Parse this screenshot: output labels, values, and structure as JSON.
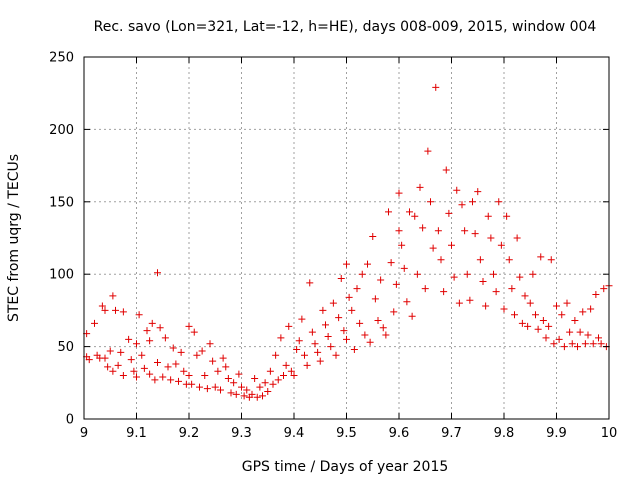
{
  "chart_data": {
    "type": "scatter",
    "title": "Rec. savo (Lon=321, Lat=-12, h=HE), days 008-009, 2015, window 004",
    "xlabel": "GPS time / Days of year 2015",
    "ylabel": "STEC from uqrg / TECUs",
    "xlim": [
      9,
      10
    ],
    "ylim": [
      0,
      250
    ],
    "xticks": [
      9,
      9.1,
      9.2,
      9.3,
      9.4,
      9.5,
      9.6,
      9.7,
      9.8,
      9.9,
      10
    ],
    "xtick_labels": [
      "9",
      "9.1",
      "9.2",
      "9.3",
      "9.4",
      "9.5",
      "9.6",
      "9.7",
      "9.8",
      "9.9",
      "10"
    ],
    "yticks": [
      0,
      50,
      100,
      150,
      200,
      250
    ],
    "ytick_labels": [
      "0",
      "50",
      "100",
      "150",
      "200",
      "250"
    ],
    "grid": true,
    "marker": "+",
    "colors": {
      "marker": "#e00000",
      "grid": "#a0a0a0",
      "axes": "#000000"
    },
    "series": [
      {
        "name": "STEC",
        "points": [
          [
            9.005,
            59
          ],
          [
            9.005,
            43
          ],
          [
            9.01,
            41
          ],
          [
            9.02,
            66
          ],
          [
            9.025,
            44
          ],
          [
            9.03,
            42
          ],
          [
            9.035,
            78
          ],
          [
            9.04,
            75
          ],
          [
            9.04,
            42
          ],
          [
            9.045,
            36
          ],
          [
            9.05,
            47
          ],
          [
            9.055,
            85
          ],
          [
            9.055,
            33
          ],
          [
            9.06,
            75
          ],
          [
            9.065,
            37
          ],
          [
            9.07,
            46
          ],
          [
            9.075,
            74
          ],
          [
            9.075,
            30
          ],
          [
            9.085,
            55
          ],
          [
            9.09,
            41
          ],
          [
            9.095,
            33
          ],
          [
            9.1,
            52
          ],
          [
            9.1,
            29
          ],
          [
            9.105,
            72
          ],
          [
            9.11,
            44
          ],
          [
            9.115,
            35
          ],
          [
            9.12,
            61
          ],
          [
            9.125,
            54
          ],
          [
            9.125,
            31
          ],
          [
            9.13,
            66
          ],
          [
            9.135,
            27
          ],
          [
            9.14,
            101
          ],
          [
            9.14,
            39
          ],
          [
            9.145,
            63
          ],
          [
            9.15,
            29
          ],
          [
            9.155,
            56
          ],
          [
            9.16,
            36
          ],
          [
            9.165,
            27
          ],
          [
            9.17,
            49
          ],
          [
            9.175,
            38
          ],
          [
            9.18,
            26
          ],
          [
            9.185,
            46
          ],
          [
            9.19,
            33
          ],
          [
            9.195,
            24
          ],
          [
            9.2,
            64
          ],
          [
            9.2,
            30
          ],
          [
            9.205,
            24
          ],
          [
            9.21,
            60
          ],
          [
            9.215,
            44
          ],
          [
            9.22,
            22
          ],
          [
            9.225,
            47
          ],
          [
            9.23,
            30
          ],
          [
            9.235,
            21
          ],
          [
            9.24,
            52
          ],
          [
            9.245,
            40
          ],
          [
            9.25,
            22
          ],
          [
            9.255,
            33
          ],
          [
            9.26,
            20
          ],
          [
            9.265,
            42
          ],
          [
            9.27,
            36
          ],
          [
            9.275,
            28
          ],
          [
            9.28,
            18
          ],
          [
            9.285,
            25
          ],
          [
            9.29,
            17
          ],
          [
            9.295,
            31
          ],
          [
            9.3,
            22
          ],
          [
            9.305,
            16
          ],
          [
            9.31,
            20
          ],
          [
            9.315,
            15
          ],
          [
            9.32,
            17
          ],
          [
            9.325,
            28
          ],
          [
            9.33,
            15
          ],
          [
            9.335,
            22
          ],
          [
            9.34,
            16
          ],
          [
            9.345,
            25
          ],
          [
            9.35,
            19
          ],
          [
            9.355,
            33
          ],
          [
            9.36,
            24
          ],
          [
            9.365,
            44
          ],
          [
            9.37,
            27
          ],
          [
            9.375,
            56
          ],
          [
            9.38,
            30
          ],
          [
            9.385,
            37
          ],
          [
            9.39,
            64
          ],
          [
            9.395,
            33
          ],
          [
            9.4,
            30
          ],
          [
            9.405,
            48
          ],
          [
            9.41,
            54
          ],
          [
            9.415,
            69
          ],
          [
            9.42,
            44
          ],
          [
            9.425,
            37
          ],
          [
            9.43,
            94
          ],
          [
            9.435,
            60
          ],
          [
            9.44,
            52
          ],
          [
            9.445,
            46
          ],
          [
            9.45,
            40
          ],
          [
            9.455,
            75
          ],
          [
            9.46,
            65
          ],
          [
            9.465,
            57
          ],
          [
            9.47,
            50
          ],
          [
            9.475,
            80
          ],
          [
            9.48,
            44
          ],
          [
            9.485,
            70
          ],
          [
            9.49,
            97
          ],
          [
            9.495,
            61
          ],
          [
            9.5,
            55
          ],
          [
            9.5,
            107
          ],
          [
            9.505,
            84
          ],
          [
            9.51,
            75
          ],
          [
            9.515,
            48
          ],
          [
            9.52,
            90
          ],
          [
            9.525,
            66
          ],
          [
            9.53,
            100
          ],
          [
            9.535,
            58
          ],
          [
            9.54,
            107
          ],
          [
            9.545,
            53
          ],
          [
            9.55,
            126
          ],
          [
            9.555,
            83
          ],
          [
            9.56,
            68
          ],
          [
            9.565,
            96
          ],
          [
            9.57,
            63
          ],
          [
            9.575,
            58
          ],
          [
            9.58,
            143
          ],
          [
            9.585,
            108
          ],
          [
            9.59,
            74
          ],
          [
            9.595,
            93
          ],
          [
            9.6,
            156
          ],
          [
            9.6,
            130
          ],
          [
            9.605,
            120
          ],
          [
            9.61,
            104
          ],
          [
            9.615,
            81
          ],
          [
            9.62,
            143
          ],
          [
            9.625,
            71
          ],
          [
            9.63,
            140
          ],
          [
            9.635,
            100
          ],
          [
            9.64,
            160
          ],
          [
            9.645,
            132
          ],
          [
            9.65,
            90
          ],
          [
            9.655,
            185
          ],
          [
            9.66,
            150
          ],
          [
            9.665,
            118
          ],
          [
            9.67,
            229
          ],
          [
            9.675,
            130
          ],
          [
            9.68,
            110
          ],
          [
            9.685,
            88
          ],
          [
            9.69,
            172
          ],
          [
            9.695,
            142
          ],
          [
            9.7,
            120
          ],
          [
            9.705,
            98
          ],
          [
            9.71,
            158
          ],
          [
            9.715,
            80
          ],
          [
            9.72,
            148
          ],
          [
            9.725,
            130
          ],
          [
            9.73,
            100
          ],
          [
            9.735,
            82
          ],
          [
            9.74,
            150
          ],
          [
            9.745,
            128
          ],
          [
            9.75,
            157
          ],
          [
            9.755,
            110
          ],
          [
            9.76,
            95
          ],
          [
            9.765,
            78
          ],
          [
            9.77,
            140
          ],
          [
            9.775,
            125
          ],
          [
            9.78,
            100
          ],
          [
            9.785,
            88
          ],
          [
            9.79,
            150
          ],
          [
            9.795,
            120
          ],
          [
            9.8,
            76
          ],
          [
            9.805,
            140
          ],
          [
            9.81,
            110
          ],
          [
            9.815,
            90
          ],
          [
            9.82,
            72
          ],
          [
            9.825,
            125
          ],
          [
            9.83,
            98
          ],
          [
            9.835,
            66
          ],
          [
            9.84,
            85
          ],
          [
            9.845,
            64
          ],
          [
            9.85,
            80
          ],
          [
            9.855,
            100
          ],
          [
            9.86,
            72
          ],
          [
            9.865,
            62
          ],
          [
            9.87,
            112
          ],
          [
            9.875,
            68
          ],
          [
            9.88,
            56
          ],
          [
            9.885,
            64
          ],
          [
            9.89,
            110
          ],
          [
            9.895,
            52
          ],
          [
            9.9,
            78
          ],
          [
            9.905,
            55
          ],
          [
            9.91,
            72
          ],
          [
            9.915,
            50
          ],
          [
            9.92,
            80
          ],
          [
            9.925,
            60
          ],
          [
            9.93,
            52
          ],
          [
            9.935,
            68
          ],
          [
            9.94,
            50
          ],
          [
            9.945,
            60
          ],
          [
            9.95,
            74
          ],
          [
            9.955,
            52
          ],
          [
            9.96,
            58
          ],
          [
            9.965,
            76
          ],
          [
            9.97,
            52
          ],
          [
            9.975,
            86
          ],
          [
            9.98,
            56
          ],
          [
            9.985,
            52
          ],
          [
            9.99,
            90
          ],
          [
            9.995,
            50
          ],
          [
            10.0,
            92
          ]
        ]
      }
    ]
  }
}
